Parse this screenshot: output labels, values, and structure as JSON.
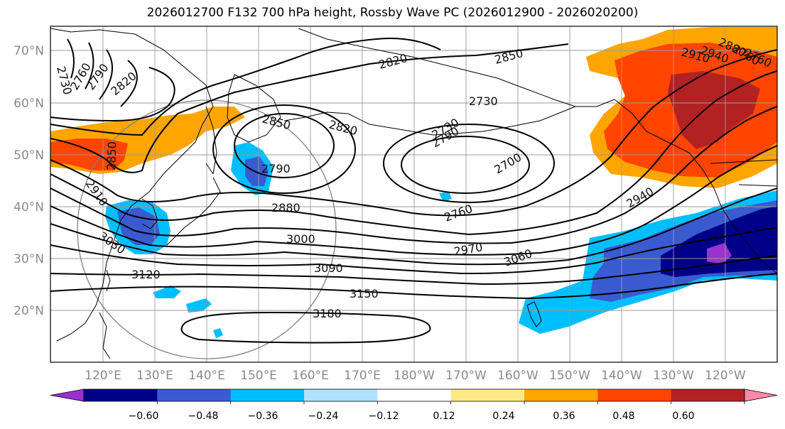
{
  "title": "2026012700 F132 700 hPa height, Rossby Wave PC (2026012900 - 2026020200)",
  "lat_labels": [
    "70°N",
    "60°N",
    "50°N",
    "40°N",
    "30°N",
    "20°N"
  ],
  "lon_labels": [
    "120°E",
    "130°E",
    "140°E",
    "150°E",
    "160°E",
    "170°E",
    "180°W",
    "170°W",
    "160°W",
    "150°W",
    "140°W",
    "130°W",
    "120°W"
  ],
  "colorbar": {
    "tick_labels": [
      "−0.60",
      "−0.48",
      "−0.36",
      "−0.24",
      "−0.12",
      "0.12",
      "0.24",
      "0.36",
      "0.48",
      "0.60"
    ],
    "colors": [
      "#9b30d0",
      "#000088",
      "#3a5bd0",
      "#00bfff",
      "#b0e2ff",
      "#ffffff",
      "#ffe88a",
      "#ffa500",
      "#ff4500",
      "#b22222",
      "#ff88aa"
    ]
  },
  "contour_labels": [
    "2730",
    "2760",
    "2790",
    "2820",
    "2850",
    "2880",
    "2910",
    "2940",
    "2850",
    "2820",
    "2790",
    "2760",
    "2760",
    "2820",
    "2730",
    "2790",
    "2730",
    "2700",
    "2760",
    "2940",
    "2850",
    "2910",
    "2880",
    "3000",
    "3030",
    "2970",
    "3060",
    "3090",
    "3120",
    "3150",
    "3180"
  ]
}
